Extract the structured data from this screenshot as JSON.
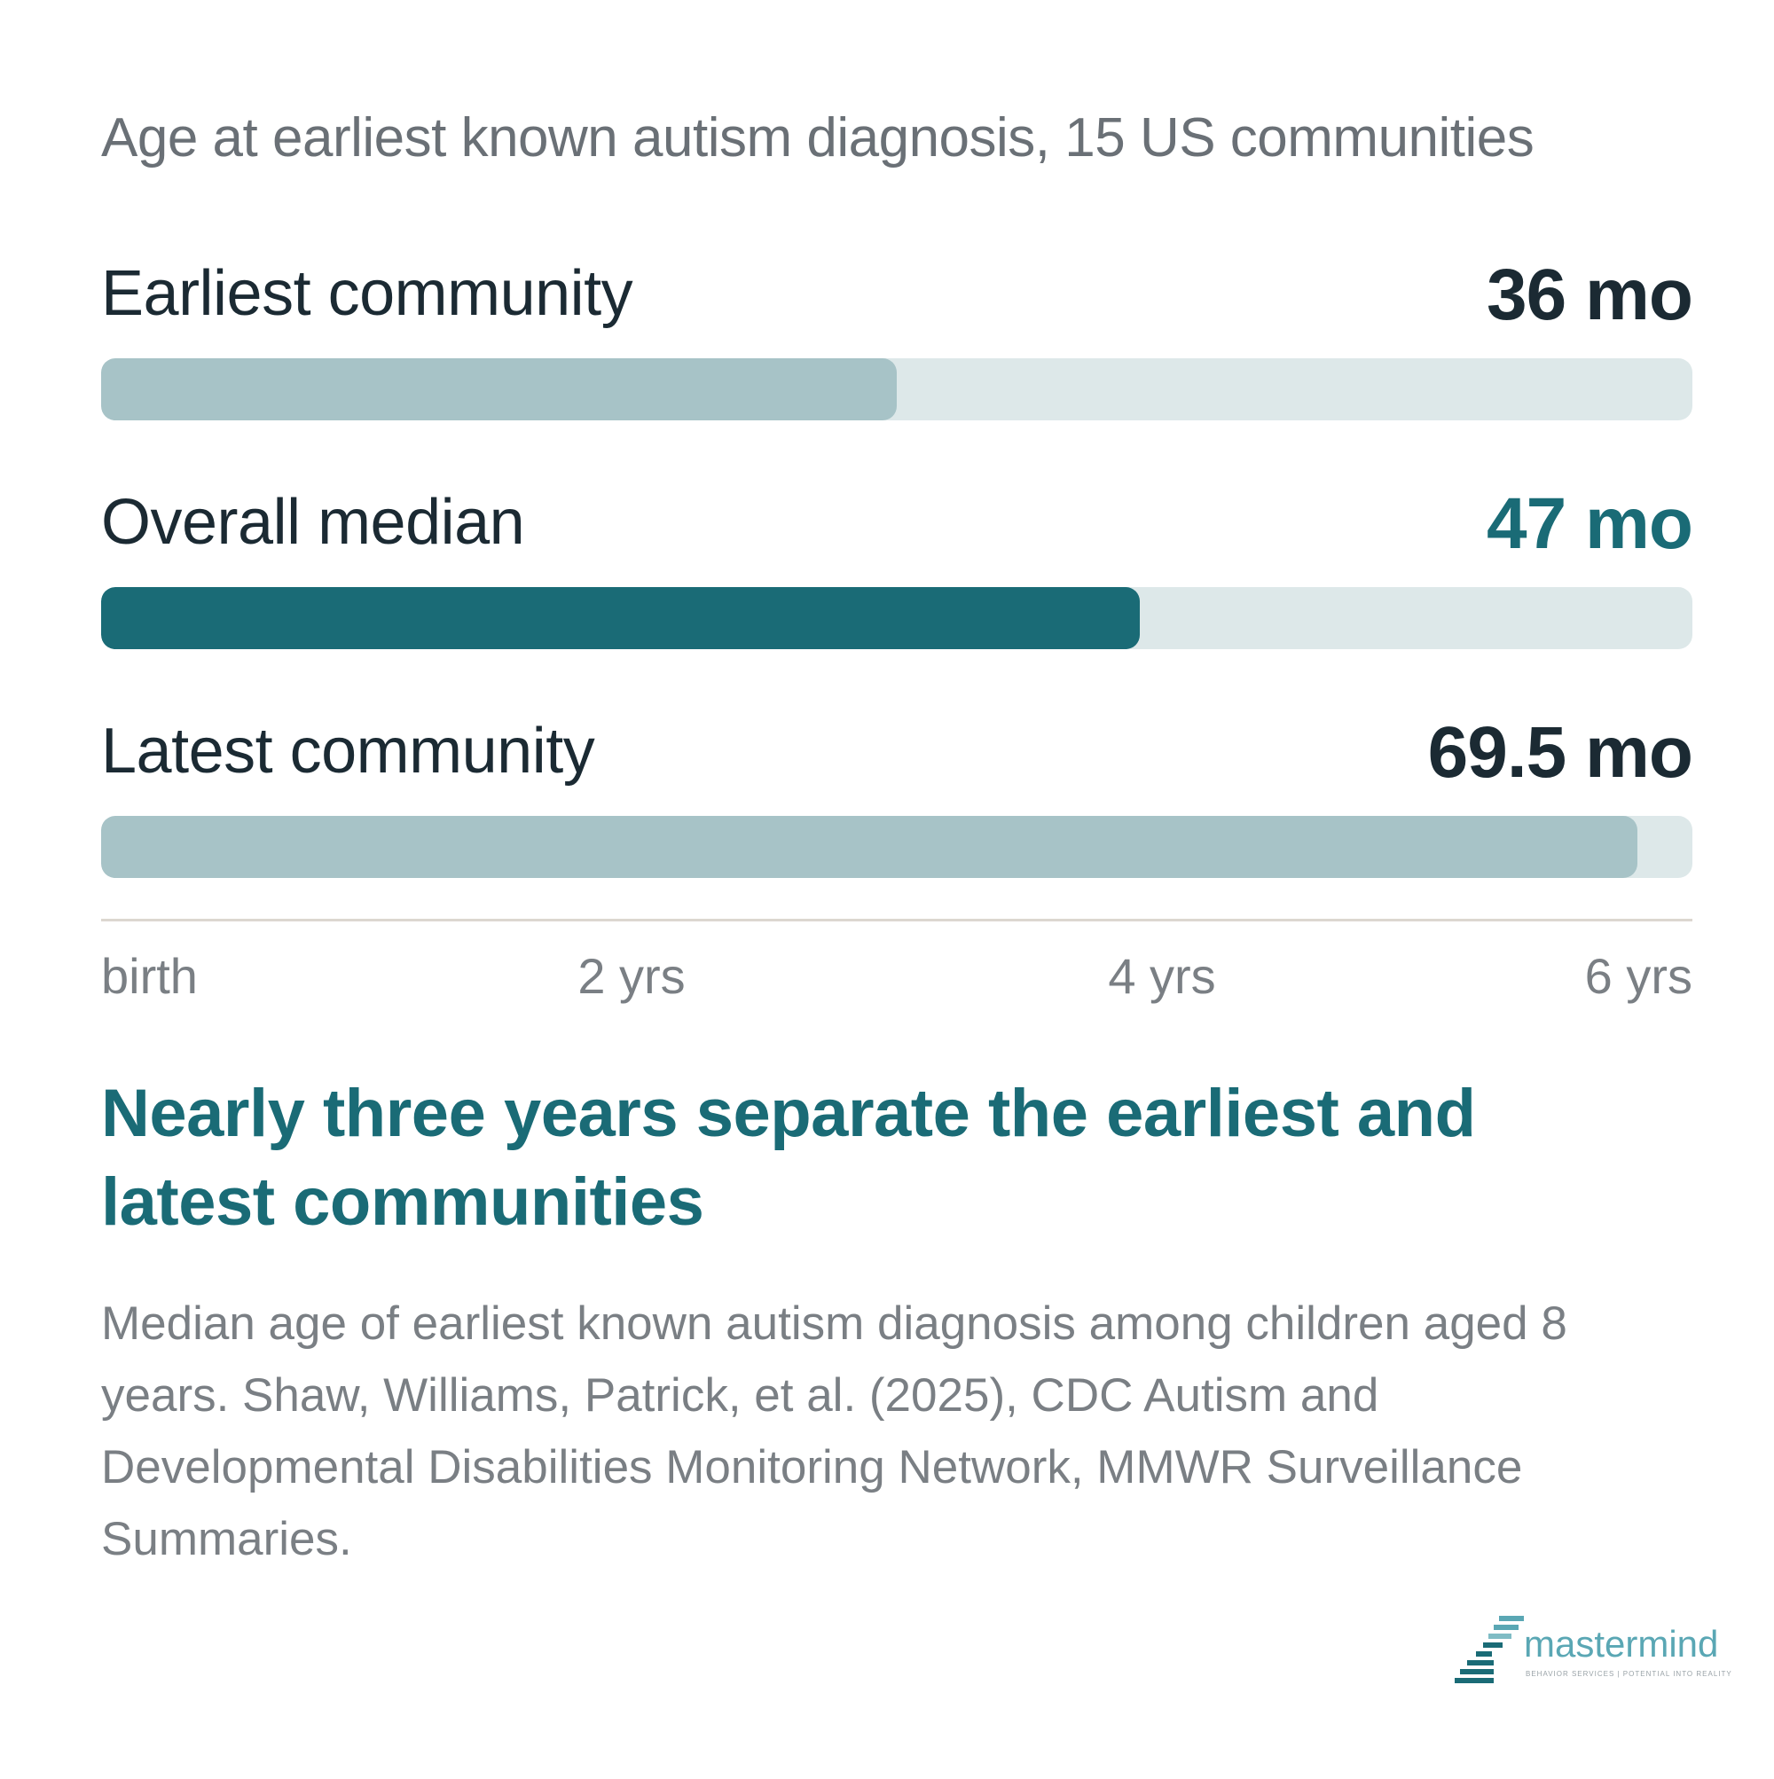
{
  "title": "Age at earliest known autism diagnosis, 15 US communities",
  "chart_data": {
    "type": "bar",
    "orientation": "horizontal",
    "title": "Age at earliest known autism diagnosis, 15 US communities",
    "unit": "mo",
    "xlim": [
      0,
      72
    ],
    "categories": [
      "Earliest community",
      "Overall median",
      "Latest community"
    ],
    "values": [
      36,
      47,
      69.5
    ],
    "value_labels": [
      "36 mo",
      "47 mo",
      "69.5 mo"
    ],
    "highlighted": "Overall median",
    "x_ticks": [
      {
        "label": "birth",
        "value": 0
      },
      {
        "label": "2 yrs",
        "value": 24
      },
      {
        "label": "4 yrs",
        "value": 48
      },
      {
        "label": "6 yrs",
        "value": 72
      }
    ],
    "colors": {
      "bar": "#a7c3c7",
      "bar_highlight": "#1a6b76",
      "track": "#dde8e9",
      "label": "#1b2a33",
      "highlight_text": "#1a6b76",
      "axis_line": "#dcd7d0",
      "tick_text": "#7a7f84"
    }
  },
  "headline": "Nearly three years separate the earliest and latest communities",
  "caption": "Median age of earliest known autism diagnosis among children aged 8 years. Shaw, Williams, Patrick, et al. (2025), CDC Autism and Developmental Disabilities Monitoring Network, MMWR Surveillance Summaries.",
  "logo": {
    "wordmark": "mastermind",
    "tagline": "BEHAVIOR SERVICES | POTENTIAL INTO REALITY",
    "colors": [
      "#5aa7b4",
      "#1a6b76",
      "#a7c3c7"
    ]
  }
}
